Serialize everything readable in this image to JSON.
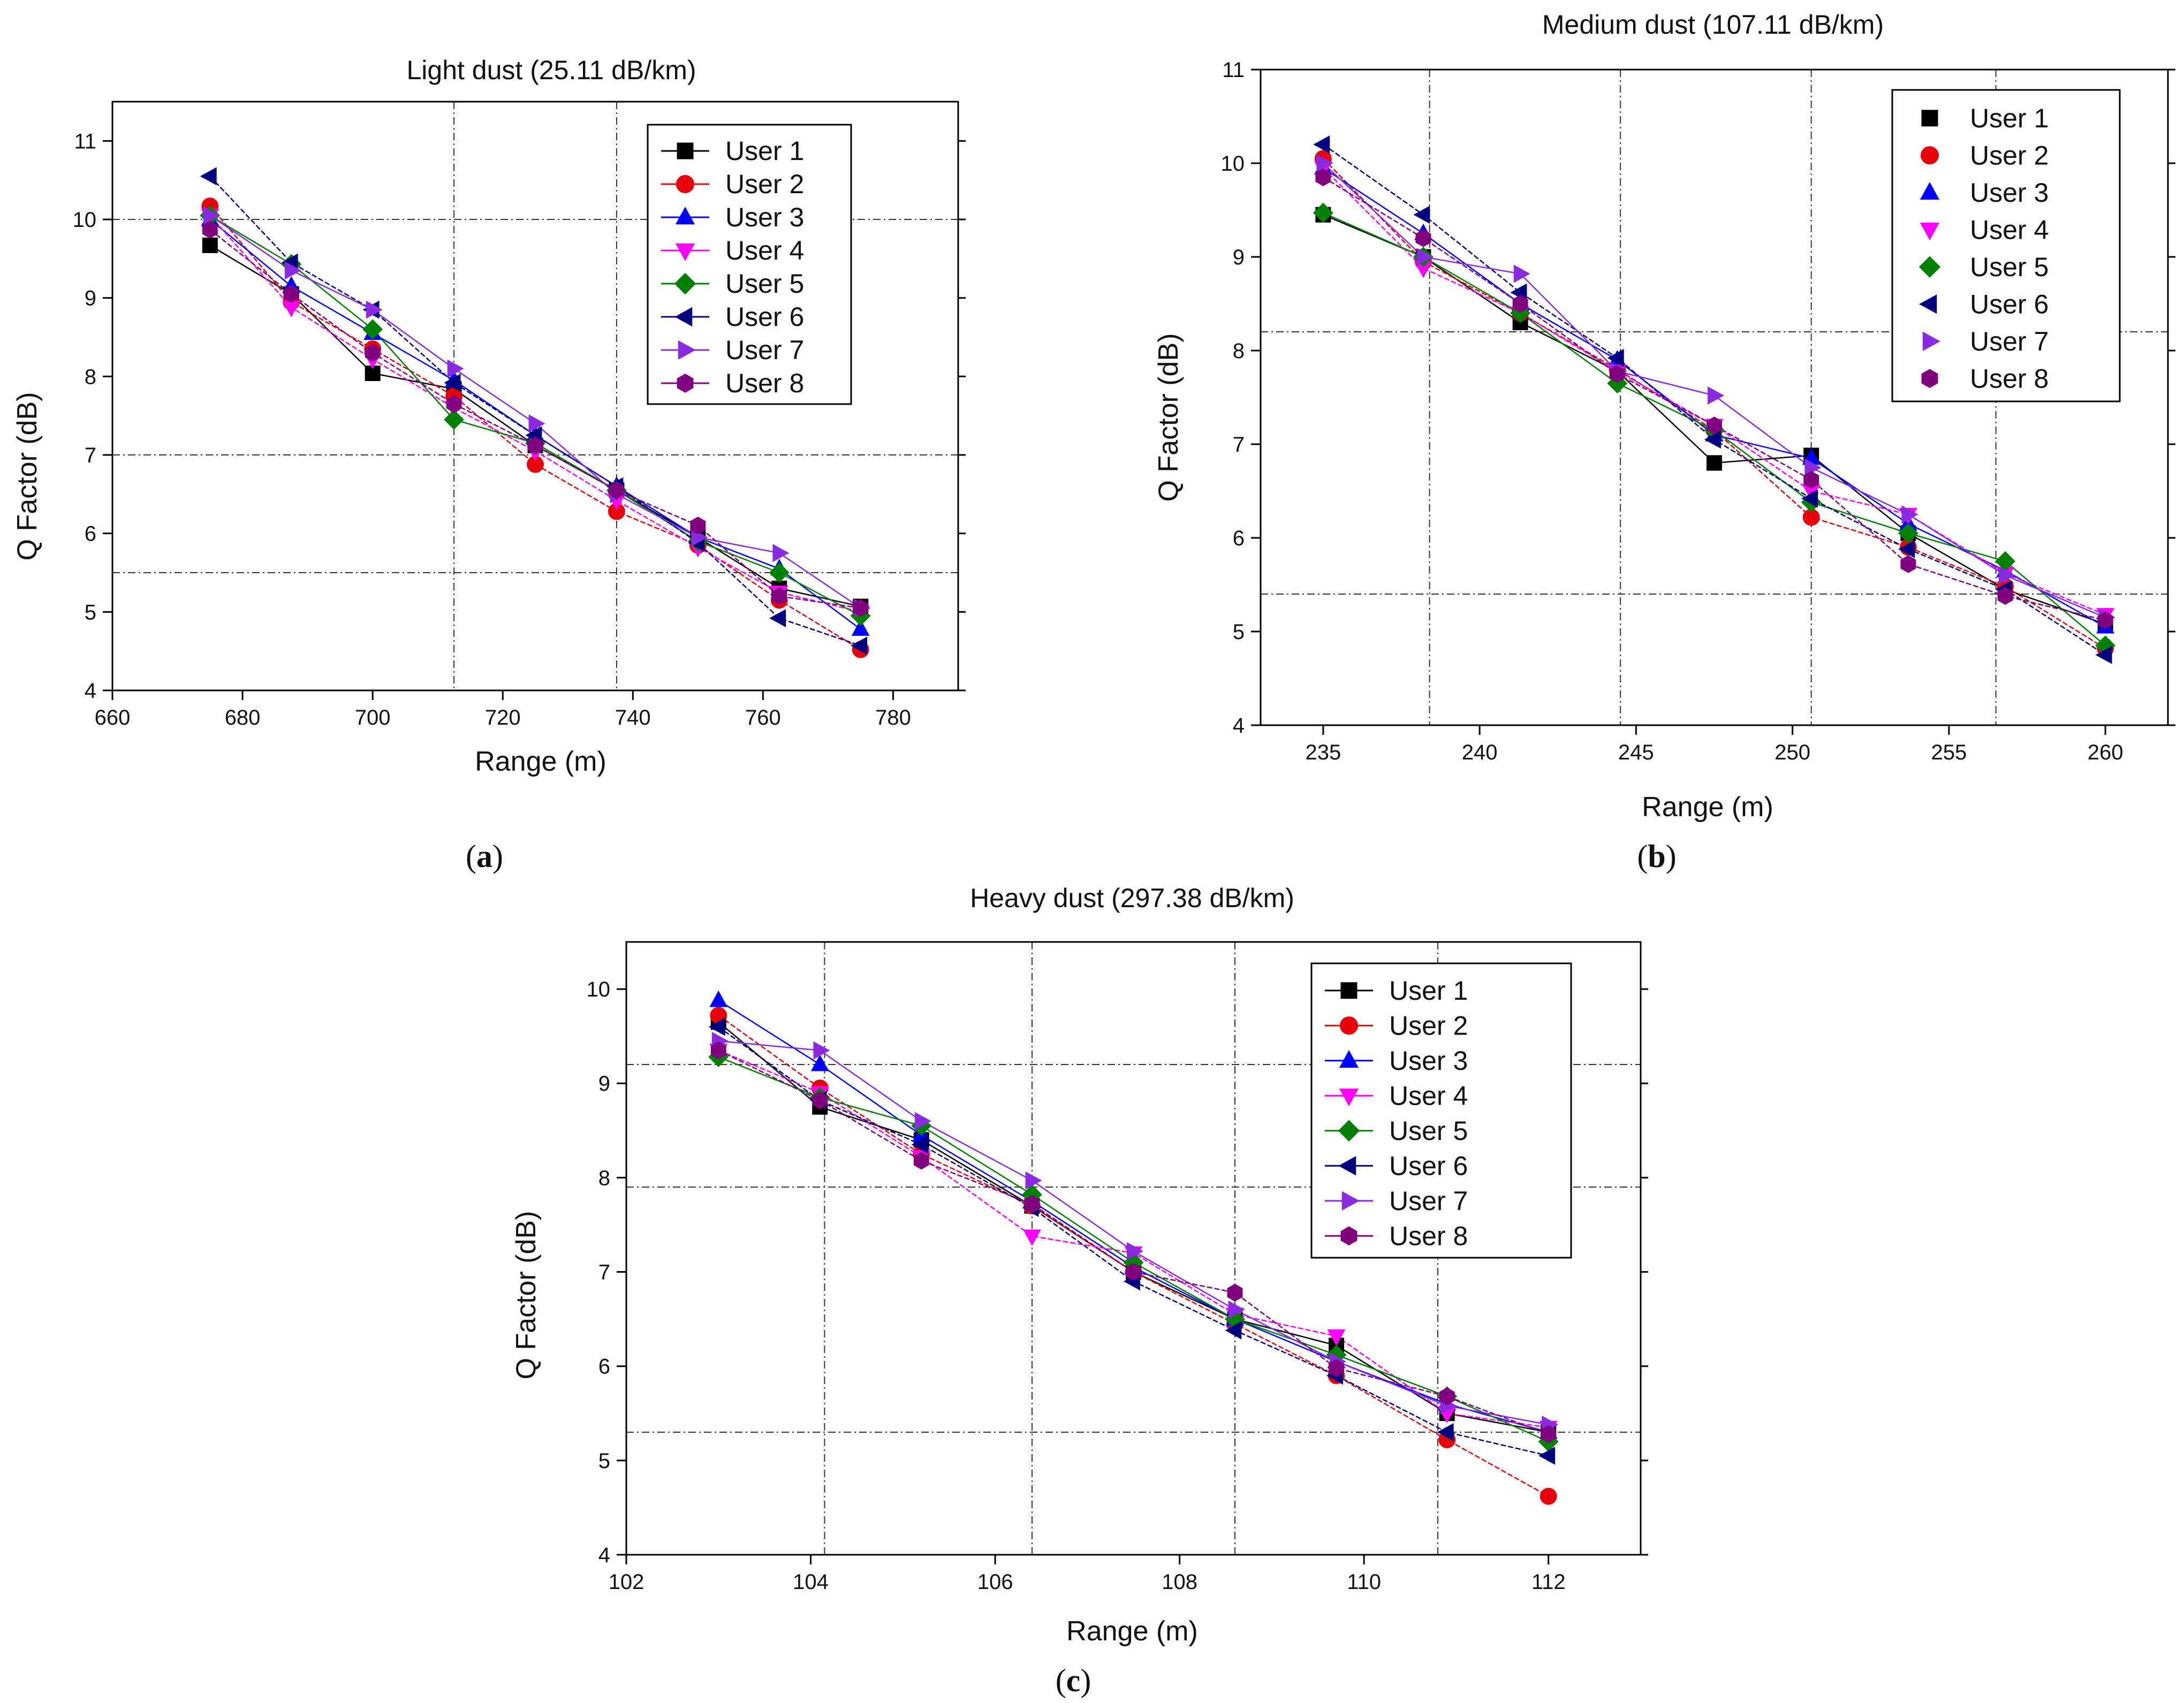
{
  "chart_data": [
    {
      "panel": "a",
      "type": "line",
      "title": "Light dust (25.11 dB/km)",
      "xlabel": "Range (m)",
      "ylabel": "Q Factor (dB)",
      "xlim": [
        660,
        790
      ],
      "ylim": [
        4,
        11.5
      ],
      "xticks": [
        660,
        680,
        700,
        720,
        740,
        760,
        780
      ],
      "yticks": [
        4,
        5,
        6,
        7,
        8,
        9,
        10,
        11
      ],
      "vlines": [
        712.5,
        737.5
      ],
      "hlines": [
        10.0,
        7.0,
        5.5
      ],
      "legend_position": "top-right",
      "x": [
        675,
        687.5,
        700,
        712.5,
        725,
        737.5,
        750,
        762.5,
        775
      ],
      "series": [
        {
          "name": "User 1",
          "values": [
            9.67,
            9.05,
            8.04,
            7.84,
            7.12,
            6.55,
            5.95,
            5.3,
            5.07
          ]
        },
        {
          "name": "User 2",
          "values": [
            10.17,
            8.95,
            8.35,
            7.75,
            6.88,
            6.28,
            5.85,
            5.15,
            4.52
          ]
        },
        {
          "name": "User 3",
          "values": [
            10.0,
            9.15,
            8.55,
            7.95,
            7.25,
            6.6,
            5.95,
            5.55,
            4.78
          ]
        },
        {
          "name": "User 4",
          "values": [
            10.05,
            8.88,
            8.22,
            7.6,
            7.05,
            6.42,
            5.82,
            5.25,
            5.0
          ]
        },
        {
          "name": "User 5",
          "values": [
            10.05,
            9.43,
            8.6,
            7.45,
            7.15,
            6.55,
            5.9,
            5.5,
            4.95
          ]
        },
        {
          "name": "User 6",
          "values": [
            10.55,
            9.45,
            8.85,
            7.92,
            7.25,
            6.6,
            5.88,
            4.92,
            4.57
          ]
        },
        {
          "name": "User 7",
          "values": [
            10.05,
            9.35,
            8.85,
            8.1,
            7.4,
            6.5,
            5.95,
            5.75,
            5.05
          ]
        },
        {
          "name": "User 8",
          "values": [
            9.87,
            9.05,
            8.3,
            7.65,
            7.12,
            6.55,
            6.1,
            5.2,
            5.05
          ]
        }
      ]
    },
    {
      "panel": "b",
      "type": "line",
      "title": "Medium dust (107.11 dB/km)",
      "xlabel": "Range (m)",
      "ylabel": "Q Factor (dB)",
      "xlim": [
        233,
        262
      ],
      "ylim": [
        4,
        11
      ],
      "xticks": [
        235,
        240,
        245,
        250,
        255,
        260
      ],
      "yticks": [
        4,
        5,
        6,
        7,
        8,
        9,
        10,
        11
      ],
      "vlines": [
        238.4,
        244.5,
        250.6,
        256.5
      ],
      "hlines": [
        8.2,
        5.4
      ],
      "legend_position": "top-right",
      "x": [
        235,
        238.2,
        241.3,
        244.4,
        247.5,
        250.6,
        253.7,
        256.8,
        260
      ],
      "series": [
        {
          "name": "User 1",
          "values": [
            9.45,
            9.0,
            8.3,
            7.78,
            6.8,
            6.88,
            6.05,
            5.45,
            5.08
          ]
        },
        {
          "name": "User 2",
          "values": [
            10.05,
            8.95,
            8.4,
            7.8,
            7.15,
            6.22,
            5.9,
            5.48,
            4.82
          ]
        },
        {
          "name": "User 3",
          "values": [
            9.95,
            9.25,
            8.5,
            7.9,
            7.1,
            6.85,
            6.15,
            5.65,
            5.05
          ]
        },
        {
          "name": "User 4",
          "values": [
            9.95,
            8.88,
            8.4,
            7.78,
            7.2,
            6.5,
            6.25,
            5.62,
            5.18
          ]
        },
        {
          "name": "User 5",
          "values": [
            9.47,
            9.0,
            8.4,
            7.65,
            7.15,
            6.38,
            6.05,
            5.75,
            4.85
          ]
        },
        {
          "name": "User 6",
          "values": [
            10.2,
            9.45,
            8.62,
            7.92,
            7.05,
            6.42,
            5.88,
            5.45,
            4.75
          ]
        },
        {
          "name": "User 7",
          "values": [
            10.0,
            9.0,
            8.82,
            7.78,
            7.52,
            6.75,
            6.25,
            5.6,
            5.15
          ]
        },
        {
          "name": "User 8",
          "values": [
            9.85,
            9.2,
            8.5,
            7.75,
            7.2,
            6.62,
            5.72,
            5.38,
            5.12
          ]
        }
      ]
    },
    {
      "panel": "c",
      "type": "line",
      "title": "Heavy dust (297.38 dB/km)",
      "xlabel": "Range (m)",
      "ylabel": "Q Factor (dB)",
      "xlim": [
        102,
        113
      ],
      "ylim": [
        4,
        10.5
      ],
      "xticks": [
        102,
        104,
        106,
        108,
        110,
        112
      ],
      "yticks": [
        4,
        5,
        6,
        7,
        8,
        9,
        10
      ],
      "vlines": [
        104.15,
        106.4,
        108.6,
        110.8
      ],
      "hlines": [
        9.2,
        7.9,
        5.3
      ],
      "legend_position": "top-right",
      "x": [
        103,
        104.1,
        105.2,
        106.4,
        107.5,
        108.6,
        109.7,
        110.9,
        112
      ],
      "series": [
        {
          "name": "User 1",
          "values": [
            9.65,
            8.75,
            8.4,
            7.7,
            7.0,
            6.5,
            6.22,
            5.5,
            5.3
          ]
        },
        {
          "name": "User 2",
          "values": [
            9.72,
            8.95,
            8.25,
            7.7,
            7.0,
            6.45,
            5.9,
            5.22,
            4.62
          ]
        },
        {
          "name": "User 3",
          "values": [
            9.88,
            9.2,
            8.45,
            7.75,
            7.05,
            6.5,
            6.05,
            5.6,
            5.3
          ]
        },
        {
          "name": "User 4",
          "values": [
            9.35,
            8.9,
            8.22,
            7.38,
            7.2,
            6.55,
            6.32,
            5.5,
            5.35
          ]
        },
        {
          "name": "User 5",
          "values": [
            9.28,
            8.85,
            8.55,
            7.82,
            7.1,
            6.5,
            6.12,
            5.68,
            5.2
          ]
        },
        {
          "name": "User 6",
          "values": [
            9.6,
            8.82,
            8.35,
            7.68,
            6.9,
            6.38,
            5.9,
            5.3,
            5.05
          ]
        },
        {
          "name": "User 7",
          "values": [
            9.45,
            9.35,
            8.6,
            7.97,
            7.22,
            6.6,
            6.05,
            5.58,
            5.38
          ]
        },
        {
          "name": "User 8",
          "values": [
            9.35,
            8.82,
            8.18,
            7.72,
            7.0,
            6.78,
            5.98,
            5.68,
            5.28
          ]
        }
      ]
    }
  ],
  "panel_labels": {
    "a": {
      "open": "(",
      "letter": "a",
      "close": ")"
    },
    "b": {
      "open": "(",
      "letter": "b",
      "close": ")"
    },
    "c": {
      "open": "(",
      "letter": "c",
      "close": ")"
    }
  },
  "series_style": [
    {
      "color": "#000000",
      "marker": "square"
    },
    {
      "color": "#e8000b",
      "marker": "circle"
    },
    {
      "color": "#0000ff",
      "marker": "triangle-up"
    },
    {
      "color": "#ff00ff",
      "marker": "triangle-down"
    },
    {
      "color": "#008000",
      "marker": "diamond"
    },
    {
      "color": "#000080",
      "marker": "triangle-left"
    },
    {
      "color": "#8a2be2",
      "marker": "triangle-right"
    },
    {
      "color": "#800080",
      "marker": "hexagon"
    }
  ]
}
